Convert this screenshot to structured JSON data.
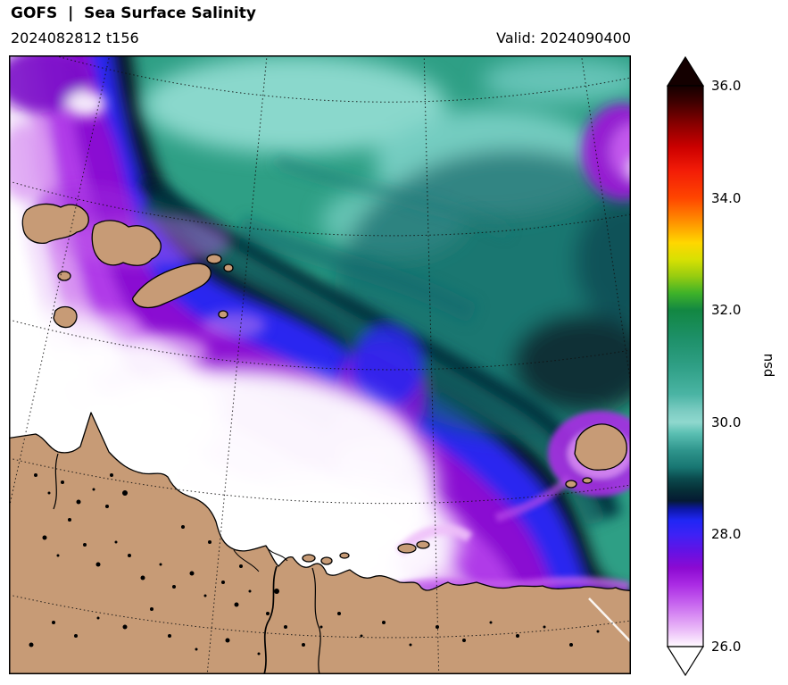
{
  "header": {
    "title": "GOFS  |  Sea Surface Salinity",
    "run": "2024082812 t156",
    "valid": "Valid: 2024090400"
  },
  "colorbar": {
    "unit": "psu",
    "min": 26.0,
    "max": 36.0,
    "ticks": [
      "36.0",
      "34.0",
      "32.0",
      "30.0",
      "28.0",
      "26.0"
    ],
    "extend": "both",
    "over_color": "#140000",
    "under_color": "#ffffff"
  },
  "map": {
    "land_color": "#c79b76",
    "coastline_color": "#000000",
    "graticule": "dotted"
  },
  "chart_data": {
    "type": "heatmap",
    "title": "GOFS | Sea Surface Salinity",
    "model": "GOFS",
    "init_time": "2024082812",
    "forecast_step": "t156",
    "valid_time": "2024090400",
    "variable": "sea surface salinity",
    "unit": "psu",
    "scale_range": [
      26.0,
      36.0
    ],
    "scale_ticks": [
      36.0,
      34.0,
      32.0,
      30.0,
      28.0,
      26.0
    ],
    "legend_position": "right",
    "colormap_stops": [
      {
        "value": 36.0,
        "color": "#140000"
      },
      {
        "value": 35.7,
        "color": "#400000"
      },
      {
        "value": 35.3,
        "color": "#8b0000"
      },
      {
        "value": 34.9,
        "color": "#cc0000"
      },
      {
        "value": 34.5,
        "color": "#f21b07"
      },
      {
        "value": 34.0,
        "color": "#ff4500"
      },
      {
        "value": 33.6,
        "color": "#ff8c00"
      },
      {
        "value": 33.2,
        "color": "#ffd700"
      },
      {
        "value": 32.9,
        "color": "#d7e003"
      },
      {
        "value": 32.6,
        "color": "#96cc10"
      },
      {
        "value": 32.3,
        "color": "#3eb229"
      },
      {
        "value": 32.0,
        "color": "#128742"
      },
      {
        "value": 31.5,
        "color": "#1d9068"
      },
      {
        "value": 31.0,
        "color": "#2f9f85"
      },
      {
        "value": 30.5,
        "color": "#4ab4a4"
      },
      {
        "value": 30.2,
        "color": "#7cccc2"
      },
      {
        "value": 30.0,
        "color": "#8fd8ce"
      },
      {
        "value": 29.8,
        "color": "#5abfb2"
      },
      {
        "value": 29.5,
        "color": "#2f958c"
      },
      {
        "value": 29.2,
        "color": "#187672"
      },
      {
        "value": 29.0,
        "color": "#0b4b4e"
      },
      {
        "value": 28.8,
        "color": "#063038"
      },
      {
        "value": 28.6,
        "color": "#051a33"
      },
      {
        "value": 28.45,
        "color": "#0d17a8"
      },
      {
        "value": 28.25,
        "color": "#2026f5"
      },
      {
        "value": 28.0,
        "color": "#3d22f5"
      },
      {
        "value": 27.7,
        "color": "#6412e4"
      },
      {
        "value": 27.4,
        "color": "#8c0ad2"
      },
      {
        "value": 27.1,
        "color": "#ab2ce4"
      },
      {
        "value": 26.8,
        "color": "#c45fee"
      },
      {
        "value": 26.5,
        "color": "#dc96f4"
      },
      {
        "value": 26.25,
        "color": "#eec6f9"
      },
      {
        "value": 26.05,
        "color": "#fcf0fe"
      },
      {
        "value": 26.0,
        "color": "#ffffff"
      }
    ],
    "field_summary": [
      {
        "region": "open ocean, upper right of map",
        "salinity_psu": "29.5 - 31 (teal, with darker patches near 29)"
      },
      {
        "region": "frontal band crossing map from upper left to lower right",
        "salinity_psu": "28 - 29 (dark navy and bright blue)"
      },
      {
        "region": "band shoreward of front",
        "salinity_psu": "26.5 - 28 (purple to magenta to pale violet)"
      },
      {
        "region": "coastal plume, center and lower left",
        "salinity_psu": "< 26 (white, river freshwater)"
      },
      {
        "region": "lower left and bottom of map",
        "salinity_psu": "land (tan) with lakes and rivers; archipelago upper left; island mid right"
      }
    ]
  }
}
